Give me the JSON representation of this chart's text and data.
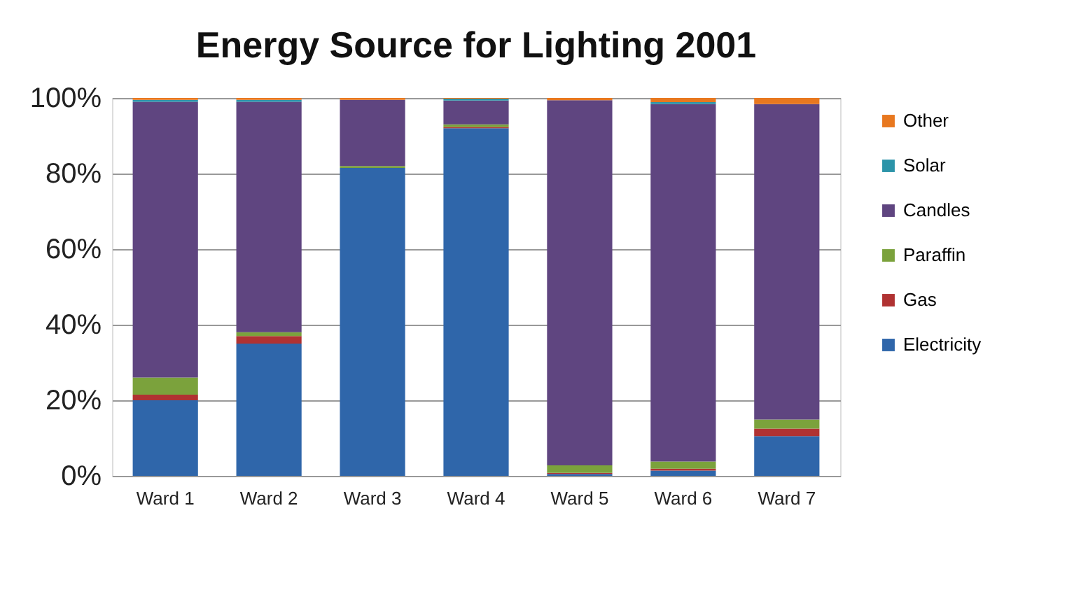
{
  "chart_data": {
    "type": "bar",
    "stacked": true,
    "title": "Energy Source for Lighting 2001",
    "categories": [
      "Ward 1",
      "Ward 2",
      "Ward 3",
      "Ward 4",
      "Ward 5",
      "Ward 6",
      "Ward 7"
    ],
    "series": [
      {
        "name": "Electricity",
        "color": "#2f66aa",
        "values": [
          20,
          35,
          81.5,
          92,
          0.5,
          1.4,
          10.5
        ]
      },
      {
        "name": "Gas",
        "color": "#b03232",
        "values": [
          1.5,
          2,
          null,
          0.3,
          0.3,
          0.5,
          2
        ]
      },
      {
        "name": "Paraffin",
        "color": "#7ba23c",
        "values": [
          4.5,
          1,
          0.5,
          0.7,
          2,
          1.9,
          2.4
        ]
      },
      {
        "name": "Candles",
        "color": "#5f4580",
        "values": [
          73,
          61,
          17.5,
          6.3,
          96.6,
          94.6,
          83.5
        ]
      },
      {
        "name": "Solar",
        "color": "#2c94a9",
        "values": [
          0.5,
          0.5,
          null,
          0.5,
          null,
          0.5,
          null
        ]
      },
      {
        "name": "Other",
        "color": "#e8781f",
        "values": [
          0.5,
          0.5,
          0.5,
          0.2,
          0.6,
          1.1,
          1.6
        ]
      }
    ],
    "ylim": [
      0,
      100
    ],
    "yticks": [
      {
        "value": 0,
        "label": "0%"
      },
      {
        "value": 20,
        "label": "20%"
      },
      {
        "value": 40,
        "label": "40%"
      },
      {
        "value": 60,
        "label": "60%"
      },
      {
        "value": 80,
        "label": "80%"
      },
      {
        "value": 100,
        "label": "100%"
      }
    ],
    "grid": "y",
    "legend": "right"
  }
}
